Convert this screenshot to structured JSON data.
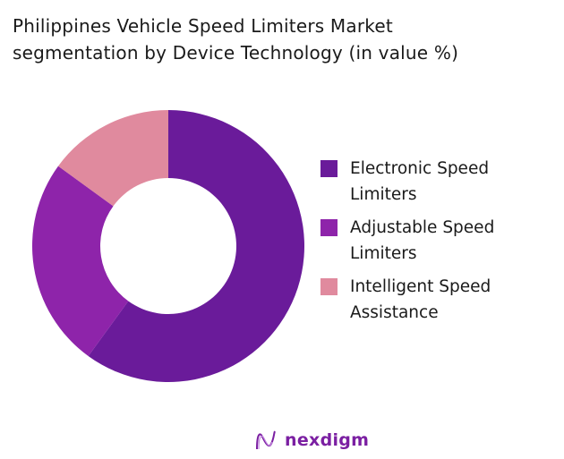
{
  "chart_data": {
    "type": "pie",
    "donut": true,
    "title": "Philippines Vehicle Speed Limiters Market segmentation by Device Technology (in value %)",
    "title_lines": [
      "Philippines Vehicle Speed Limiters Market",
      "segmentation by Device Technology (in value %)"
    ],
    "categories": [
      "Electronic Speed Limiters",
      "Adjustable Speed Limiters",
      "Intelligent Speed Assistance"
    ],
    "legend_lines": [
      [
        "Electronic Speed",
        "Limiters"
      ],
      [
        "Adjustable Speed",
        "Limiters"
      ],
      [
        "Intelligent Speed",
        "Assistance"
      ]
    ],
    "values": [
      60,
      25,
      15
    ],
    "unit": "%",
    "colors": [
      "#6a1b9a",
      "#8e24aa",
      "#e08a9e"
    ],
    "legend_position": "right"
  },
  "brand": {
    "name": "nexdigm",
    "color": "#7b1fa2"
  }
}
